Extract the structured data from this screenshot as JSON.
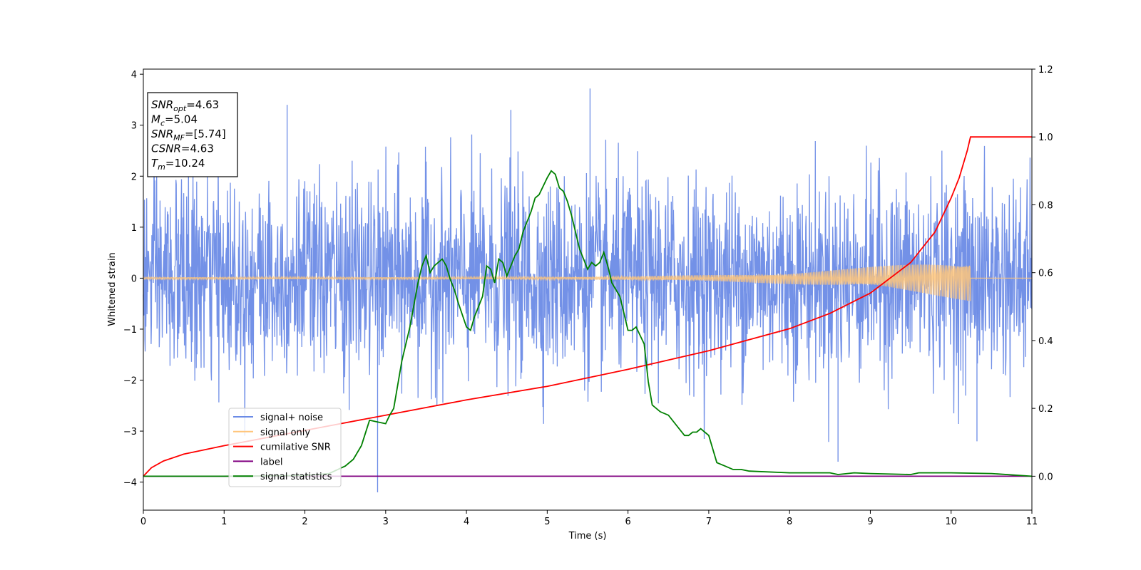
{
  "chart_data": {
    "type": "line",
    "xlabel": "Time (s)",
    "ylabel": "Whitened strain",
    "xlim": [
      0,
      11
    ],
    "ylim_left": [
      -4.55,
      4.1
    ],
    "ylim_right": [
      -0.1,
      1.2
    ],
    "xticks": [
      "0",
      "1",
      "2",
      "3",
      "4",
      "5",
      "6",
      "7",
      "8",
      "9",
      "10",
      "11"
    ],
    "yticks_left": [
      "−4",
      "−3",
      "−2",
      "−1",
      "0",
      "1",
      "2",
      "3",
      "4"
    ],
    "yticks_right": [
      "0.0",
      "0.2",
      "0.4",
      "0.6",
      "0.8",
      "1.0",
      "1.2"
    ],
    "legend_position": "lower-left",
    "series": [
      {
        "name": "signal+ noise",
        "color": "#6b8be6",
        "axis": "left",
        "style": "dense noise, amplitude about ±2.2 with spikes to 3.7 and -4.2"
      },
      {
        "name": "signal only",
        "color": "#ffc57a",
        "axis": "left",
        "style": "chirp growing from 0 to ±0.45 amplitude, ends at 10.24 s"
      },
      {
        "name": "cumilative SNR",
        "color": "#ff0000",
        "axis": "right",
        "x": [
          0,
          0.1,
          0.25,
          0.5,
          1,
          2,
          3,
          4,
          5,
          6,
          7,
          8,
          8.5,
          9,
          9.5,
          9.8,
          10,
          10.1,
          10.2,
          10.24,
          11
        ],
        "y": [
          0.0,
          0.025,
          0.045,
          0.065,
          0.09,
          0.135,
          0.18,
          0.225,
          0.265,
          0.315,
          0.37,
          0.435,
          0.48,
          0.54,
          0.63,
          0.72,
          0.82,
          0.88,
          0.96,
          1.0,
          1.0
        ]
      },
      {
        "name": "label",
        "color": "#800080",
        "axis": "right",
        "x": [
          0,
          11
        ],
        "y": [
          0.0,
          0.0
        ]
      },
      {
        "name": "signal statistics",
        "color": "#008000",
        "axis": "right",
        "x": [
          0,
          0.5,
          1,
          1.5,
          2,
          2.3,
          2.5,
          2.6,
          2.7,
          2.8,
          2.9,
          3.0,
          3.05,
          3.1,
          3.2,
          3.3,
          3.4,
          3.45,
          3.5,
          3.55,
          3.6,
          3.7,
          3.75,
          3.8,
          3.85,
          3.9,
          4.0,
          4.05,
          4.1,
          4.2,
          4.25,
          4.3,
          4.35,
          4.4,
          4.45,
          4.5,
          4.55,
          4.6,
          4.65,
          4.7,
          4.8,
          4.85,
          4.9,
          5.0,
          5.05,
          5.1,
          5.15,
          5.2,
          5.25,
          5.3,
          5.4,
          5.5,
          5.55,
          5.6,
          5.65,
          5.7,
          5.75,
          5.8,
          5.85,
          5.9,
          5.95,
          6.0,
          6.05,
          6.1,
          6.2,
          6.25,
          6.3,
          6.4,
          6.5,
          6.6,
          6.7,
          6.75,
          6.8,
          6.85,
          6.9,
          7.0,
          7.1,
          7.2,
          7.3,
          7.4,
          7.5,
          8.0,
          8.5,
          8.6,
          8.8,
          9.0,
          9.5,
          9.6,
          9.8,
          10.0,
          10.5,
          11.0
        ],
        "y": [
          0.0,
          0.0,
          0.0,
          0.001,
          0.002,
          0.008,
          0.03,
          0.05,
          0.09,
          0.165,
          0.16,
          0.155,
          0.18,
          0.2,
          0.34,
          0.44,
          0.57,
          0.62,
          0.65,
          0.6,
          0.62,
          0.64,
          0.62,
          0.58,
          0.55,
          0.51,
          0.44,
          0.43,
          0.47,
          0.53,
          0.62,
          0.61,
          0.57,
          0.64,
          0.63,
          0.59,
          0.62,
          0.65,
          0.67,
          0.72,
          0.78,
          0.82,
          0.83,
          0.88,
          0.9,
          0.89,
          0.85,
          0.84,
          0.81,
          0.77,
          0.67,
          0.61,
          0.63,
          0.62,
          0.63,
          0.66,
          0.62,
          0.57,
          0.55,
          0.53,
          0.48,
          0.43,
          0.43,
          0.44,
          0.39,
          0.28,
          0.21,
          0.19,
          0.18,
          0.15,
          0.12,
          0.12,
          0.13,
          0.13,
          0.14,
          0.12,
          0.04,
          0.03,
          0.02,
          0.02,
          0.015,
          0.01,
          0.01,
          0.005,
          0.01,
          0.008,
          0.005,
          0.01,
          0.01,
          0.01,
          0.008,
          0.0
        ]
      }
    ],
    "annotation": {
      "lines": [
        {
          "var": "SNR",
          "sub": "opt",
          "value": "=4.63"
        },
        {
          "var": "M",
          "sub": "c",
          "value": "=5.04"
        },
        {
          "var": "SNR",
          "sub": "MF",
          "value": "=[5.74]"
        },
        {
          "var": "CSNR",
          "sub": "",
          "value": "=4.63"
        },
        {
          "var": "T",
          "sub": "m",
          "value": "=10.24"
        }
      ]
    }
  }
}
